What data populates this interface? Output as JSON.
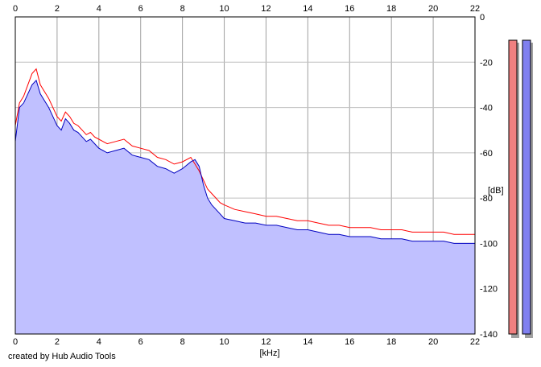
{
  "footer_text": "created by Hub Audio Tools",
  "chart_data": {
    "type": "area",
    "xlabel": "[kHz]",
    "ylabel": "[dB]",
    "xlim": [
      0,
      22
    ],
    "ylim": [
      -140,
      0
    ],
    "x_ticks": [
      "0",
      "2",
      "4",
      "6",
      "8",
      "10",
      "12",
      "14",
      "16",
      "18",
      "20",
      "22"
    ],
    "y_ticks": [
      "0",
      "-20",
      "-40",
      "-60",
      "-80",
      "-100",
      "-120",
      "-140"
    ],
    "grid": true,
    "fill_color": "#c0c0ff",
    "series": [
      {
        "color": "#ff0000",
        "x": [
          0,
          0.2,
          0.4,
          0.6,
          0.8,
          1.0,
          1.2,
          1.4,
          1.6,
          1.8,
          2.0,
          2.2,
          2.4,
          2.6,
          2.8,
          3.0,
          3.2,
          3.4,
          3.6,
          3.8,
          4.0,
          4.4,
          4.8,
          5.2,
          5.6,
          6.0,
          6.4,
          6.8,
          7.2,
          7.6,
          8.0,
          8.4,
          8.6,
          8.8,
          9.0,
          9.2,
          9.4,
          9.6,
          9.8,
          10.0,
          10.5,
          11,
          11.5,
          12,
          12.5,
          13,
          13.5,
          14,
          14.5,
          15,
          15.5,
          16,
          16.5,
          17,
          17.5,
          18,
          18.5,
          19,
          19.5,
          20,
          20.5,
          21,
          21.5,
          22
        ],
        "values": [
          -48,
          -38,
          -35,
          -30,
          -25,
          -23,
          -30,
          -33,
          -36,
          -40,
          -44,
          -46,
          -42,
          -44,
          -47,
          -48,
          -50,
          -52,
          -51,
          -53,
          -54,
          -56,
          -55,
          -54,
          -57,
          -58,
          -59,
          -62,
          -63,
          -65,
          -64,
          -62,
          -65,
          -68,
          -72,
          -76,
          -78,
          -80,
          -82,
          -83,
          -85,
          -86,
          -87,
          -88,
          -88,
          -89,
          -90,
          -90,
          -91,
          -92,
          -92,
          -93,
          -93,
          -93,
          -94,
          -94,
          -94,
          -95,
          -95,
          -95,
          -95,
          -96,
          -96,
          -96
        ]
      },
      {
        "color": "#0000c0",
        "x": [
          0,
          0.2,
          0.4,
          0.6,
          0.8,
          1.0,
          1.2,
          1.4,
          1.6,
          1.8,
          2.0,
          2.2,
          2.4,
          2.6,
          2.8,
          3.0,
          3.2,
          3.4,
          3.6,
          3.8,
          4.0,
          4.4,
          4.8,
          5.2,
          5.6,
          6.0,
          6.4,
          6.8,
          7.2,
          7.6,
          8.0,
          8.4,
          8.6,
          8.8,
          9.0,
          9.2,
          9.4,
          9.6,
          9.8,
          10.0,
          10.5,
          11,
          11.5,
          12,
          12.5,
          13,
          13.5,
          14,
          14.5,
          15,
          15.5,
          16,
          16.5,
          17,
          17.5,
          18,
          18.5,
          19,
          19.5,
          20,
          20.5,
          21,
          21.5,
          22
        ],
        "values": [
          -55,
          -40,
          -38,
          -34,
          -30,
          -28,
          -34,
          -37,
          -40,
          -44,
          -48,
          -50,
          -45,
          -47,
          -50,
          -51,
          -53,
          -55,
          -54,
          -56,
          -58,
          -60,
          -59,
          -58,
          -61,
          -62,
          -63,
          -66,
          -67,
          -69,
          -67,
          -64,
          -63,
          -66,
          -74,
          -80,
          -83,
          -85,
          -87,
          -89,
          -90,
          -91,
          -91,
          -92,
          -92,
          -93,
          -94,
          -94,
          -95,
          -96,
          -96,
          -97,
          -97,
          -97,
          -98,
          -98,
          -98,
          -99,
          -99,
          -99,
          -99,
          -100,
          -100,
          -100
        ]
      }
    ],
    "level_meters": [
      {
        "color": "#f08080"
      },
      {
        "color": "#8080f0"
      }
    ]
  }
}
